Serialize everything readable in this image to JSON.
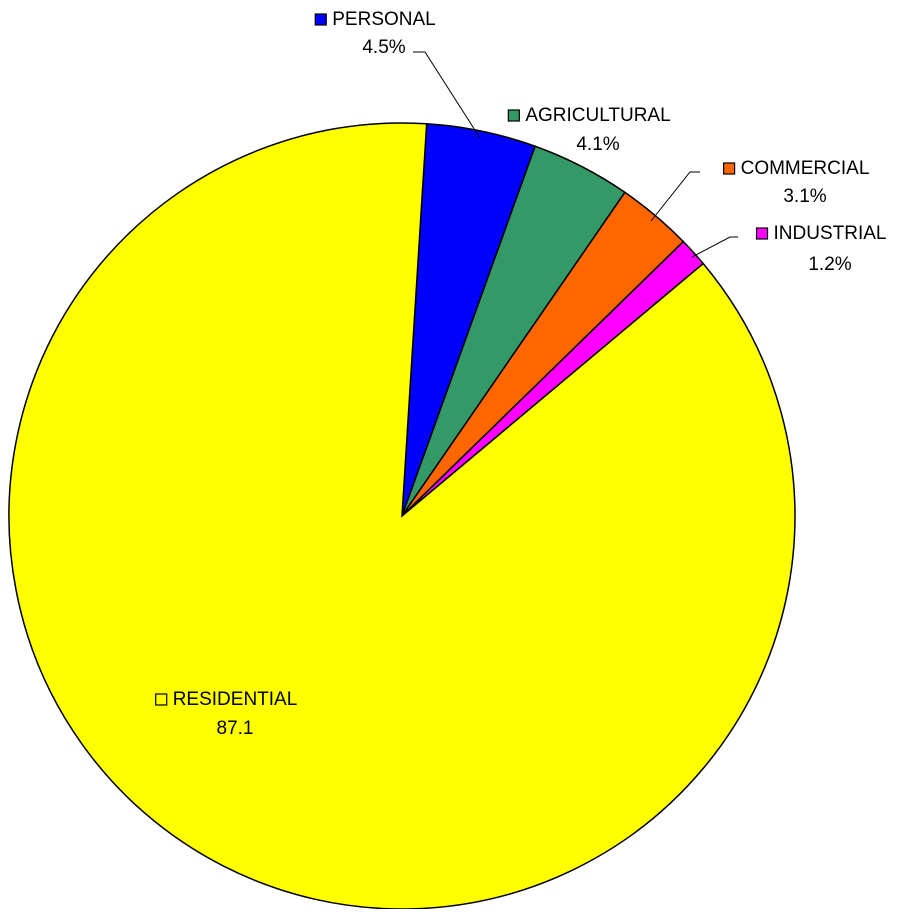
{
  "chart_data": {
    "type": "pie",
    "categories": [
      "PERSONAL",
      "AGRICULTURAL",
      "COMMERCIAL",
      "INDUSTRIAL",
      "RESIDENTIAL"
    ],
    "values": [
      4.5,
      4.1,
      3.1,
      1.2,
      87.1
    ],
    "value_labels": [
      "4.5%",
      "4.1%",
      "3.1%",
      "1.2%",
      "87.1"
    ],
    "colors": [
      "#0000ff",
      "#339966",
      "#ff6600",
      "#ff00ff",
      "#ffff00"
    ]
  }
}
